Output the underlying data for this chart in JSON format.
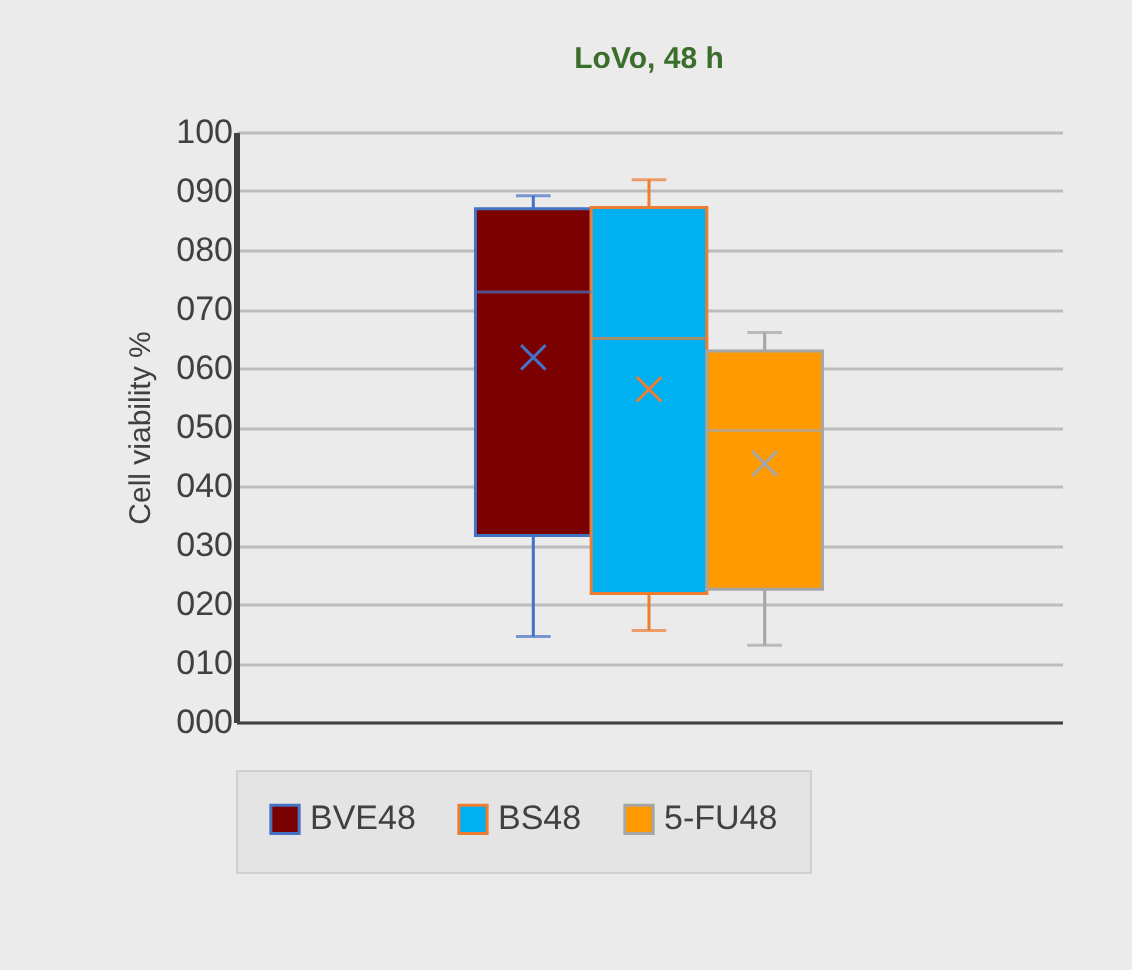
{
  "chart_data": {
    "type": "box",
    "title": "LoVo, 48 h",
    "ylabel": "Cell viability %",
    "categories": [
      null
    ],
    "series": [
      {
        "name": "BVE48",
        "color": "#7b0000",
        "boxes": [
          {
            "low": 14.5,
            "q1": 31.6,
            "median": 72.9,
            "q3": 87,
            "high": 89.2,
            "mean": 61.8
          }
        ]
      },
      {
        "name": "BS48",
        "color": "#00b0f0",
        "boxes": [
          {
            "low": 15.5,
            "q1": 21.8,
            "median": 65,
            "q3": 87.2,
            "high": 91.9,
            "mean": 56.4
          }
        ]
      },
      {
        "name": "5-FU48",
        "color": "#ff9900",
        "boxes": [
          {
            "low": 13,
            "q1": 22.5,
            "median": 49.4,
            "q3": 62.9,
            "high": 66,
            "mean": 43.8
          }
        ]
      }
    ],
    "ylim": [
      0,
      100
    ],
    "yticks": [
      {
        "value": 0,
        "label": "000"
      },
      {
        "value": 10,
        "label": "010"
      },
      {
        "value": 20,
        "label": "020"
      },
      {
        "value": 30,
        "label": "030"
      },
      {
        "value": 40,
        "label": "040"
      },
      {
        "value": 50,
        "label": "050"
      },
      {
        "value": 60,
        "label": "060"
      },
      {
        "value": 70,
        "label": "070"
      },
      {
        "value": 80,
        "label": "080"
      },
      {
        "value": 90,
        "label": "090"
      },
      100
    ],
    "grid": "y",
    "legend": "bottom"
  }
}
